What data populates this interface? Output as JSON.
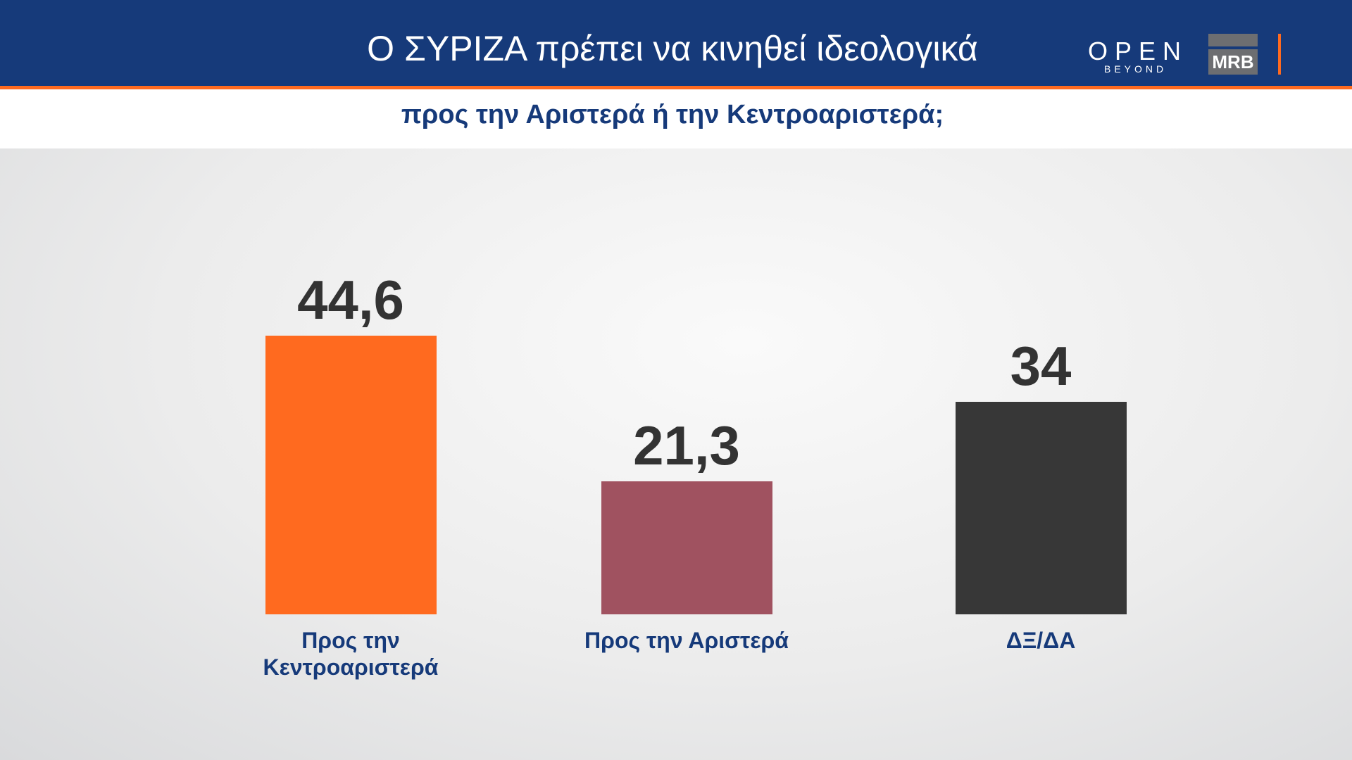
{
  "header": {
    "title": "Ο ΣΥΡΙΖΑ πρέπει να κινηθεί ιδεολογικά",
    "logo_open": "OPEN",
    "logo_beyond": "BEYOND",
    "logo_mrb": "MRB"
  },
  "chart_data": {
    "type": "bar",
    "title": "προς την Αριστερά ή την Κεντροαριστερά;",
    "categories": [
      "Προς την Κεντροαριστερά",
      "Προς την Αριστερά",
      "ΔΞ/ΔΑ"
    ],
    "values": [
      44.6,
      21.3,
      34
    ],
    "value_labels": [
      "44,6",
      "21,3",
      "34"
    ],
    "colors": [
      "#ff6a1f",
      "#a05260",
      "#373737"
    ]
  }
}
